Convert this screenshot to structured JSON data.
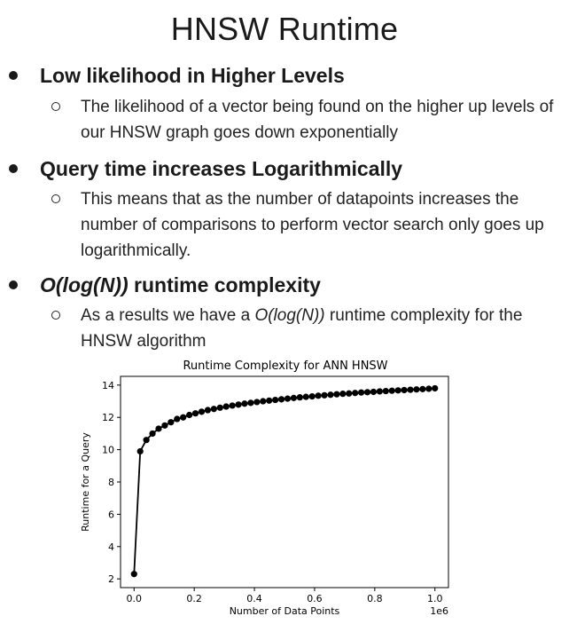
{
  "slide": {
    "title": "HNSW Runtime",
    "bullets": [
      {
        "heading": "Low likelihood in Higher Levels",
        "sub": "The likelihood of a vector being found on the higher up levels of our HNSW graph goes down exponentially"
      },
      {
        "heading": "Query time increases Logarithmically",
        "sub": "This means that as the number of datapoints increases the number of comparisons to perform vector search only goes up logarithmically."
      },
      {
        "heading_prefix": "O(log(N))",
        "heading_suffix": " runtime complexity",
        "sub_prefix": "As a results we have a ",
        "sub_italic": "O(log(N))",
        "sub_suffix": " runtime complexity for the HNSW algorithm"
      }
    ]
  },
  "chart_data": {
    "type": "line",
    "title": "Runtime Complexity for ANN HNSW",
    "xlabel": "Number of Data Points",
    "ylabel": "Runtime for a Query",
    "x_offset_label": "1e6",
    "xlim": [
      0,
      1000000
    ],
    "ylim": [
      2,
      14
    ],
    "xticks": [
      "0.0",
      "0.2",
      "0.4",
      "0.6",
      "0.8",
      "1.0"
    ],
    "yticks": [
      "2",
      "4",
      "6",
      "8",
      "10",
      "12",
      "14"
    ],
    "grid": false,
    "color": "#000000",
    "series": [
      {
        "x": [
          1,
          20409,
          40817,
          61225,
          81633,
          102041,
          122449,
          142857,
          163265,
          183673,
          204081,
          224489,
          244897,
          265305,
          285714,
          306122,
          326530,
          346938,
          367346,
          387754,
          408162,
          428570,
          448978,
          469386,
          489795,
          510203,
          530611,
          551019,
          571427,
          591835,
          612243,
          632651,
          653059,
          673467,
          693876,
          714284,
          734692,
          755100,
          775508,
          795916,
          816324,
          836732,
          857140,
          877548,
          897957,
          918365,
          938773,
          959181,
          979589,
          1000000
        ],
        "y": [
          2.3,
          9.9,
          10.6,
          11.0,
          11.3,
          11.5,
          11.7,
          11.9,
          12.0,
          12.15,
          12.25,
          12.35,
          12.45,
          12.52,
          12.6,
          12.67,
          12.73,
          12.79,
          12.85,
          12.9,
          12.95,
          13.0,
          13.04,
          13.08,
          13.12,
          13.16,
          13.2,
          13.24,
          13.27,
          13.3,
          13.34,
          13.37,
          13.4,
          13.43,
          13.46,
          13.48,
          13.51,
          13.54,
          13.56,
          13.58,
          13.61,
          13.63,
          13.65,
          13.67,
          13.69,
          13.71,
          13.73,
          13.75,
          13.77,
          13.8
        ]
      }
    ]
  }
}
